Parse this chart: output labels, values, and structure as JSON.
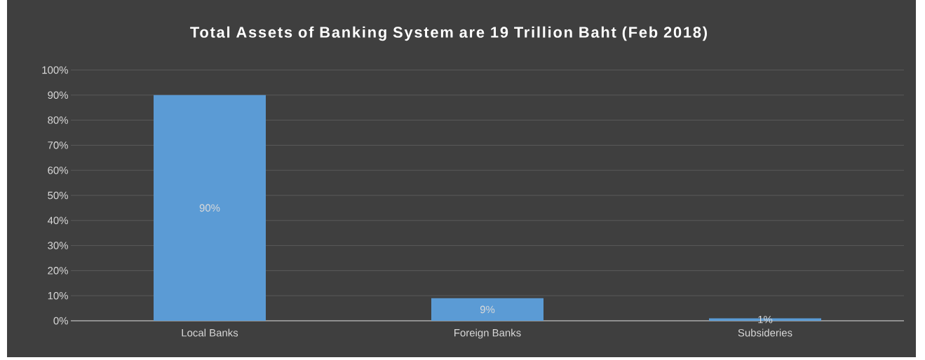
{
  "chart_data": {
    "type": "bar",
    "title": "Total Assets of Banking System are 19 Trillion Baht (Feb 2018)",
    "categories": [
      "Local Banks",
      "Foreign Banks",
      "Subsideries"
    ],
    "values": [
      90,
      9,
      1
    ],
    "color": "#5b9bd5",
    "value_labels": [
      "90%",
      "9%",
      "1%"
    ],
    "ylim": [
      0,
      100
    ],
    "yticks": [
      {
        "value": 0,
        "label": "0%"
      },
      {
        "value": 10,
        "label": "10%"
      },
      {
        "value": 20,
        "label": "20%"
      },
      {
        "value": 30,
        "label": "30%"
      },
      {
        "value": 40,
        "label": "40%"
      },
      {
        "value": 50,
        "label": "50%"
      },
      {
        "value": 60,
        "label": "60%"
      },
      {
        "value": 70,
        "label": "70%"
      },
      {
        "value": 80,
        "label": "80%"
      },
      {
        "value": 90,
        "label": "90%"
      },
      {
        "value": 100,
        "label": "100%"
      }
    ],
    "grid": "y"
  }
}
